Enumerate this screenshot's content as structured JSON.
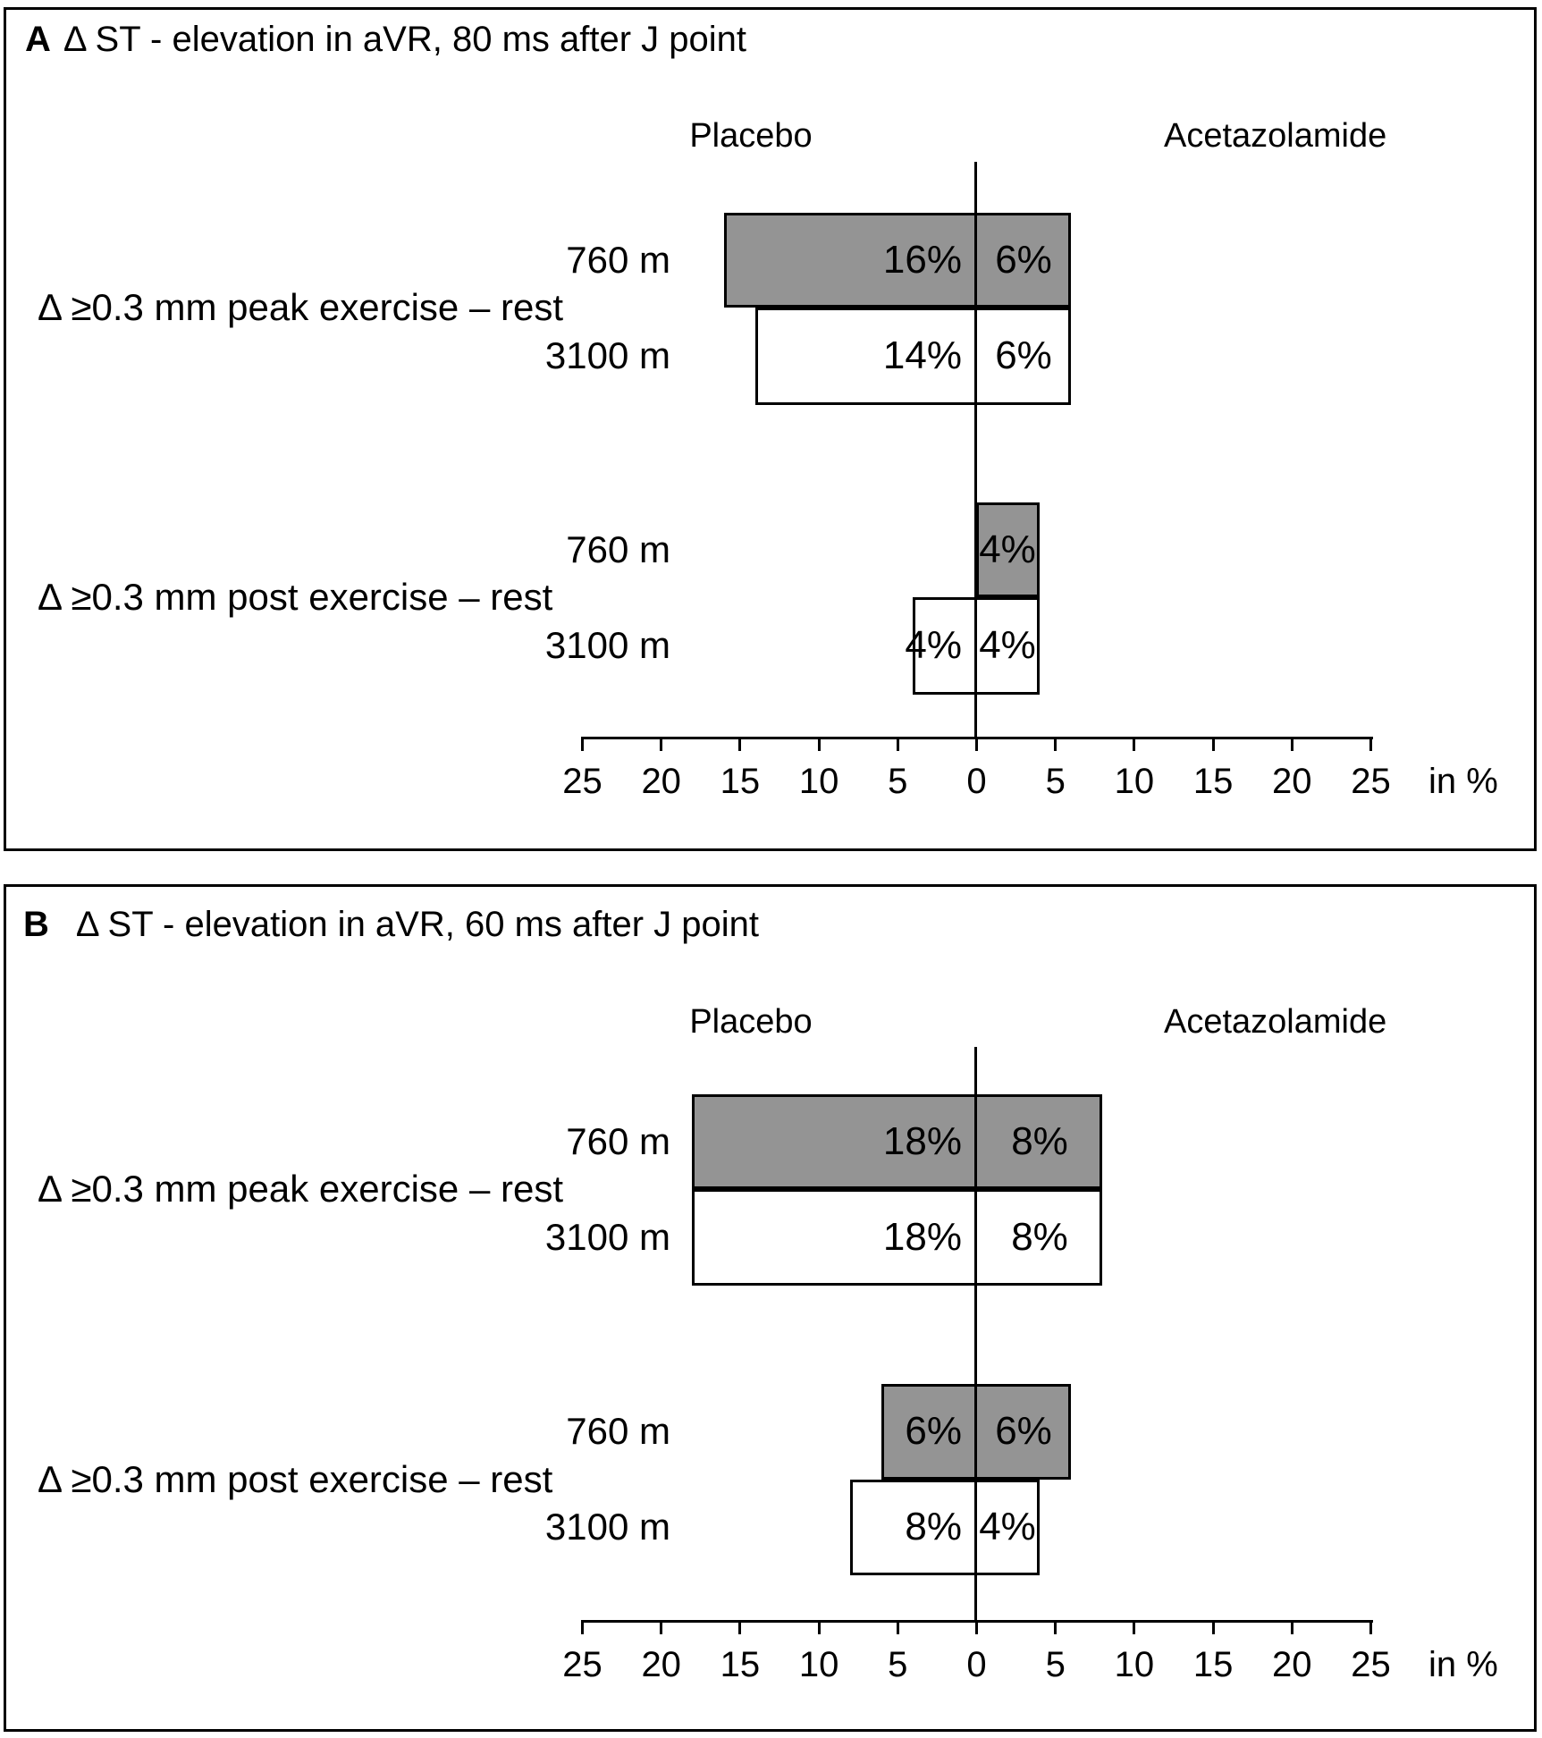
{
  "colors": {
    "bar_gray": "#949494",
    "bar_white": "#ffffff",
    "line_black": "#000000"
  },
  "chart_data": [
    {
      "type": "bar",
      "orientation": "diverging-horizontal",
      "panel": "A",
      "title": "Δ ST - elevation in aVR, 80 ms after J point",
      "left_series": "Placebo",
      "right_series": "Acetazolamide",
      "axis": {
        "unit": "in %",
        "ticks": [
          "25",
          "20",
          "15",
          "10",
          "5",
          "0",
          "5",
          "10",
          "15",
          "20",
          "25"
        ],
        "max": 25,
        "step": 5,
        "grid": false
      },
      "groups": [
        {
          "label": "Δ ≥0.3 mm peak exercise – rest",
          "rows": [
            {
              "altitude": "760 m",
              "placebo_pct": 16,
              "acetazolamide_pct": 6,
              "placebo_label": "16%",
              "acetazolamide_label": "6%",
              "fill": "#949494"
            },
            {
              "altitude": "3100 m",
              "placebo_pct": 14,
              "acetazolamide_pct": 6,
              "placebo_label": "14%",
              "acetazolamide_label": "6%",
              "fill": "#ffffff"
            }
          ]
        },
        {
          "label": "Δ ≥0.3 mm post exercise – rest",
          "rows": [
            {
              "altitude": "760 m",
              "placebo_pct": 0,
              "acetazolamide_pct": 4,
              "placebo_label": "",
              "acetazolamide_label": "4%",
              "fill": "#949494"
            },
            {
              "altitude": "3100 m",
              "placebo_pct": 4,
              "acetazolamide_pct": 4,
              "placebo_label": "4%",
              "acetazolamide_label": "4%",
              "fill": "#ffffff"
            }
          ]
        }
      ]
    },
    {
      "type": "bar",
      "orientation": "diverging-horizontal",
      "panel": "B",
      "title": "Δ ST - elevation in aVR, 60 ms after J point",
      "left_series": "Placebo",
      "right_series": "Acetazolamide",
      "axis": {
        "unit": "in %",
        "ticks": [
          "25",
          "20",
          "15",
          "10",
          "5",
          "0",
          "5",
          "10",
          "15",
          "20",
          "25"
        ],
        "max": 25,
        "step": 5,
        "grid": false
      },
      "groups": [
        {
          "label": "Δ ≥0.3 mm peak exercise – rest",
          "rows": [
            {
              "altitude": "760 m",
              "placebo_pct": 18,
              "acetazolamide_pct": 8,
              "placebo_label": "18%",
              "acetazolamide_label": "8%",
              "fill": "#949494"
            },
            {
              "altitude": "3100 m",
              "placebo_pct": 18,
              "acetazolamide_pct": 8,
              "placebo_label": "18%",
              "acetazolamide_label": "8%",
              "fill": "#ffffff"
            }
          ]
        },
        {
          "label": "Δ ≥0.3 mm post exercise – rest",
          "rows": [
            {
              "altitude": "760 m",
              "placebo_pct": 6,
              "acetazolamide_pct": 6,
              "placebo_label": "6%",
              "acetazolamide_label": "6%",
              "fill": "#949494"
            },
            {
              "altitude": "3100 m",
              "placebo_pct": 8,
              "acetazolamide_pct": 4,
              "placebo_label": "8%",
              "acetazolamide_label": "4%",
              "fill": "#ffffff"
            }
          ]
        }
      ]
    }
  ]
}
